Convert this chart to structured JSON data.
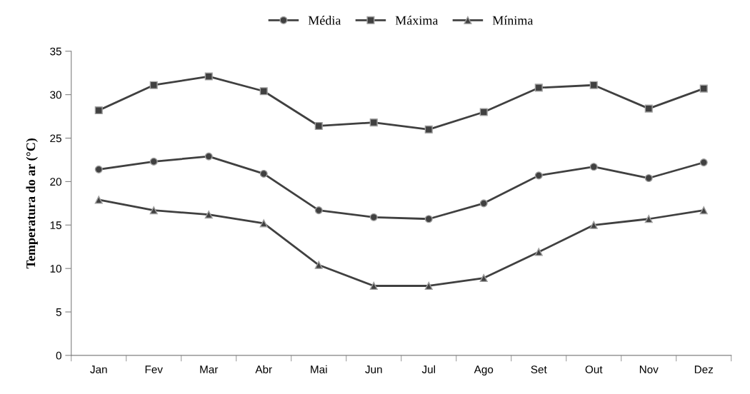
{
  "chart_data": {
    "type": "line",
    "ylabel": "Temperatura do ar (°C)",
    "categories": [
      "Jan",
      "Fev",
      "Mar",
      "Abr",
      "Mai",
      "Jun",
      "Jul",
      "Ago",
      "Set",
      "Out",
      "Nov",
      "Dez"
    ],
    "series": [
      {
        "name": "Média",
        "color": "#404040",
        "marker": "circle",
        "values": [
          21.4,
          22.3,
          22.9,
          20.9,
          16.7,
          15.9,
          15.7,
          17.5,
          20.7,
          21.7,
          20.4,
          22.2
        ]
      },
      {
        "name": "Máxima",
        "color": "#404040",
        "marker": "square",
        "values": [
          28.2,
          31.1,
          32.1,
          30.4,
          26.4,
          26.8,
          26.0,
          28.0,
          30.8,
          31.1,
          28.4,
          30.7
        ]
      },
      {
        "name": "Mínima",
        "color": "#404040",
        "marker": "triangle",
        "values": [
          17.9,
          16.7,
          16.2,
          15.2,
          10.4,
          8.0,
          8.0,
          8.9,
          11.9,
          15.0,
          15.7,
          16.7
        ]
      }
    ],
    "ylim": [
      0,
      35
    ],
    "yticks": [
      0,
      5,
      10,
      15,
      20,
      25,
      30,
      35
    ],
    "grid": false,
    "legend": "top",
    "line_style": "solid"
  }
}
